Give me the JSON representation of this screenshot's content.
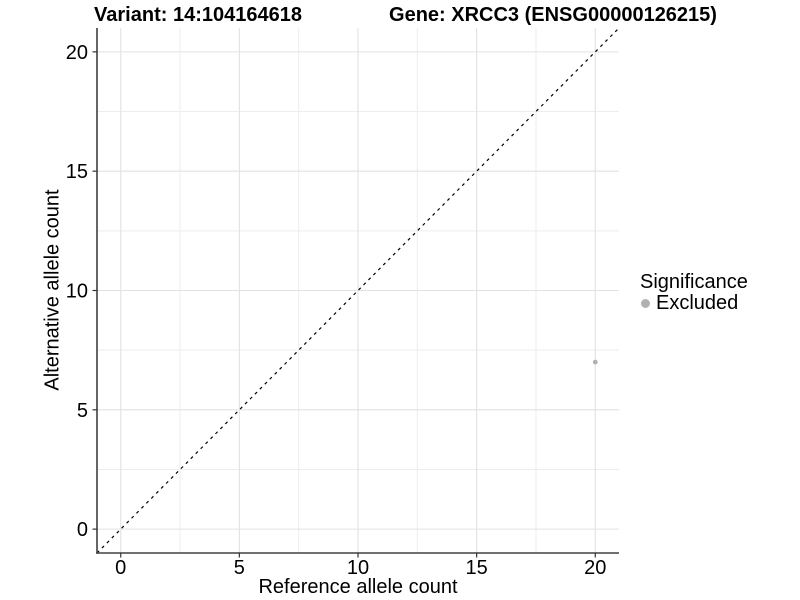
{
  "chart_data": {
    "type": "scatter",
    "titles": {
      "left": "Variant: 14:104164618",
      "right": "Gene: XRCC3 (ENSG00000126215)"
    },
    "xlabel": "Reference allele count",
    "ylabel": "Alternative allele count",
    "xlim": [
      -1,
      21
    ],
    "ylim": [
      -1,
      21
    ],
    "x_ticks": [
      0,
      5,
      10,
      15,
      20
    ],
    "y_ticks": [
      0,
      5,
      10,
      15,
      20
    ],
    "x_minor_ticks": [
      2.5,
      7.5,
      12.5,
      17.5
    ],
    "y_minor_ticks": [
      2.5,
      7.5,
      12.5,
      17.5
    ],
    "grid": true,
    "reference_line": {
      "type": "identity",
      "equation": "y = x",
      "style": "dashed",
      "color": "#000000"
    },
    "series": [
      {
        "name": "Excluded",
        "color": "#b0b0b0",
        "points": [
          {
            "x": 20,
            "y": 7
          }
        ]
      }
    ],
    "legend": {
      "title": "Significance",
      "position": "right",
      "entries": [
        {
          "label": "Excluded",
          "color": "#b0b0b0"
        }
      ]
    },
    "colors": {
      "background": "#ffffff",
      "grid_major": "#e2e2e2",
      "grid_minor": "#ededed",
      "axis": "#404040",
      "tick": "#333333",
      "text": "#000000"
    }
  }
}
